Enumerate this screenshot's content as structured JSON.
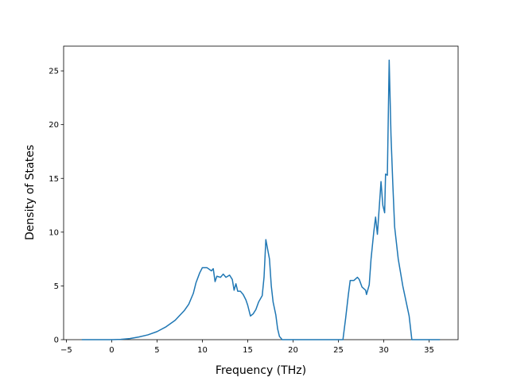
{
  "chart_data": {
    "type": "line",
    "x_label": "Frequency (THz)",
    "y_label": "Density of States",
    "xlim": [
      -5.3,
      38.2
    ],
    "ylim": [
      0,
      27.3
    ],
    "xticks": [
      {
        "value": -5,
        "label": "−5"
      },
      0,
      5,
      10,
      15,
      20,
      25,
      30,
      35
    ],
    "yticks": [
      0,
      5,
      10,
      15,
      20,
      25
    ],
    "grid": false,
    "series": [
      {
        "color": "#1f77b4",
        "x": [
          -3.3,
          0,
          1,
          2,
          3,
          4,
          5,
          6,
          7,
          8,
          8.5,
          9,
          9.3,
          9.7,
          10,
          10.5,
          11,
          11.2,
          11.4,
          11.6,
          12,
          12.3,
          12.6,
          13,
          13.3,
          13.5,
          13.7,
          13.9,
          14.2,
          14.5,
          14.8,
          15,
          15.3,
          15.6,
          15.9,
          16.2,
          16.6,
          16.8,
          17,
          17.4,
          17.6,
          17.8,
          18.1,
          18.3,
          18.5,
          18.8,
          25.5,
          25.8,
          26.1,
          26.3,
          26.7,
          27.1,
          27.3,
          27.6,
          28,
          28.1,
          28.4,
          28.6,
          28.9,
          29.1,
          29.3,
          29.7,
          29.9,
          30.1,
          30.2,
          30.4,
          30.6,
          30.8,
          31.0,
          31.2,
          31.6,
          32.1,
          32.6,
          32.8,
          33.1,
          36.2
        ],
        "values": [
          0,
          0,
          0.03,
          0.1,
          0.25,
          0.45,
          0.75,
          1.2,
          1.8,
          2.7,
          3.3,
          4.3,
          5.3,
          6.2,
          6.7,
          6.7,
          6.4,
          6.6,
          5.4,
          5.9,
          5.8,
          6.1,
          5.8,
          6.0,
          5.6,
          4.6,
          5.2,
          4.5,
          4.5,
          4.2,
          3.7,
          3.2,
          2.2,
          2.4,
          2.8,
          3.5,
          4.1,
          5.8,
          9.3,
          7.5,
          5.0,
          3.5,
          2.3,
          1.0,
          0.3,
          0,
          0,
          2.0,
          4.2,
          5.5,
          5.5,
          5.8,
          5.6,
          4.9,
          4.6,
          4.2,
          5.1,
          7.5,
          10.0,
          11.4,
          9.8,
          14.7,
          12.5,
          11.8,
          15.4,
          15.3,
          26.0,
          19.0,
          14.5,
          10.5,
          7.5,
          5.0,
          3.0,
          2.2,
          0,
          0
        ]
      }
    ]
  }
}
